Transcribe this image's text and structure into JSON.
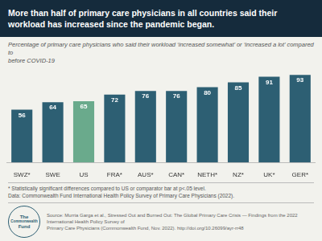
{
  "chart_data": {
    "type": "bar",
    "title": "More than half of primary care physicians in all countries said their\nworkload has increased since the pandemic began.",
    "subtitle": "Percentage of primary care physicians who said their workload ‘increased somewhat’ or ‘increased a lot’ compared to\nbefore COVID-19",
    "categories": [
      "SWZ*",
      "SWE",
      "US",
      "FRA*",
      "AUS*",
      "CAN*",
      "NETH*",
      "NZ*",
      "UK*",
      "GER*"
    ],
    "values": [
      56,
      64,
      65,
      72,
      76,
      76,
      80,
      85,
      91,
      93
    ],
    "colors": [
      "#2d5f73",
      "#2d5f73",
      "#6aaa8c",
      "#2d5f73",
      "#2d5f73",
      "#2d5f73",
      "#2d5f73",
      "#2d5f73",
      "#2d5f73",
      "#2d5f73"
    ],
    "ylim": [
      0,
      100
    ],
    "grid": false,
    "data_labels": true,
    "tick_labels": "x",
    "annotations": [
      "* Statistically significant differences compared to US or comparator bar at p<.05 level.",
      "Data: Commonwealth Fund International Health Policy Survey of Primary Care Physicians (2022).",
      "Source: Murria Garga et al., Stressed Out and Burned Out: The Global Primary Care Crisis — Findings from the 2022 International Health Policy Survey of\nPrimary Care Physicians (Commonwealth Fund, Nov. 2022). http://doi.org/10.26099/ayr-rr48",
      "The",
      "Commonwealth",
      "Fund"
    ]
  }
}
